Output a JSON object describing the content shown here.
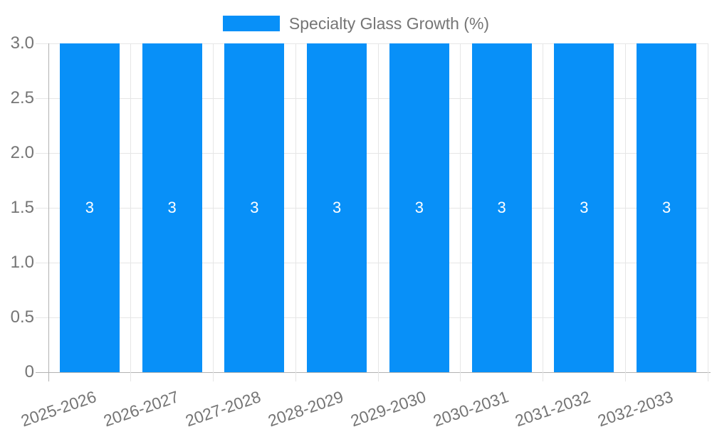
{
  "chart_data": {
    "type": "bar",
    "title": "",
    "categories": [
      "2025-2026",
      "2026-2027",
      "2027-2028",
      "2028-2029",
      "2029-2030",
      "2030-2031",
      "2031-2032",
      "2032-2033"
    ],
    "series": [
      {
        "name": "Specialty Glass Growth (%)",
        "values": [
          3,
          3,
          3,
          3,
          3,
          3,
          3,
          3
        ]
      }
    ],
    "value_labels": [
      "3",
      "3",
      "3",
      "3",
      "3",
      "3",
      "3",
      "3"
    ],
    "yticks": [
      "0",
      "0.5",
      "1.0",
      "1.5",
      "2.0",
      "2.5",
      "3.0"
    ],
    "ytick_values": [
      0,
      0.5,
      1.0,
      1.5,
      2.0,
      2.5,
      3.0
    ],
    "ylim": [
      0,
      3
    ],
    "xlabel": "",
    "ylabel": "",
    "grid": true,
    "legend_position": "top-center",
    "colors": {
      "bar": "#0890f8",
      "grid": "#e6e6e6",
      "axis": "#b3b3b3",
      "text": "#757575",
      "value_label": "#ffffff",
      "background": "#ffffff"
    }
  }
}
